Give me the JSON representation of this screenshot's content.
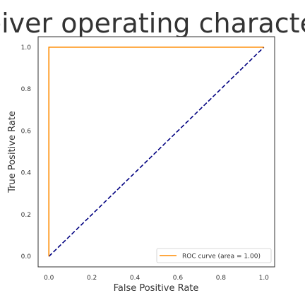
{
  "chart_data": {
    "type": "line",
    "title": "Receiver operating characteristic",
    "xlabel": "False Positive Rate",
    "ylabel": "True Positive Rate",
    "xlim": [
      -0.05,
      1.05
    ],
    "ylim": [
      -0.05,
      1.05
    ],
    "x_ticks": [
      "0.0",
      "0.2",
      "0.4",
      "0.6",
      "0.8",
      "1.0"
    ],
    "y_ticks": [
      "0.0",
      "0.2",
      "0.4",
      "0.6",
      "0.8",
      "1.0"
    ],
    "grid": false,
    "legend_position": "lower right",
    "series": [
      {
        "name": "ROC curve (area = 1.00)",
        "color": "#ff8c00",
        "style": "solid",
        "x": [
          0.0,
          0.0,
          1.0
        ],
        "y": [
          0.0,
          1.0,
          1.0
        ]
      },
      {
        "color": "#000080",
        "style": "dashed",
        "x": [
          0.0,
          1.0
        ],
        "y": [
          0.0,
          1.0
        ]
      }
    ]
  }
}
